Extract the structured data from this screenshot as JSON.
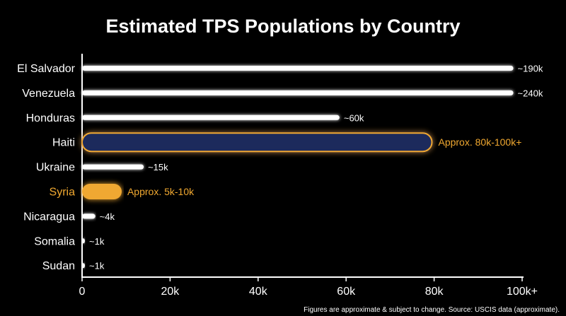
{
  "chart_data": {
    "type": "bar",
    "orientation": "horizontal",
    "title": "Estimated TPS Populations by Country",
    "categories": [
      "El Salvador",
      "Venezuela",
      "Honduras",
      "Haiti",
      "Ukraine",
      "Syria",
      "Nicaragua",
      "Somalia",
      "Sudan"
    ],
    "values": [
      98,
      98,
      58.5,
      79.5,
      14,
      9,
      3,
      0.3,
      0.3
    ],
    "value_labels": [
      "~190k",
      "~240k",
      "~60k",
      "Approx. 80k-100k+",
      "~15k",
      "Approx. 5k-10k",
      "~4k",
      "~1k",
      "~1k"
    ],
    "highlight": [
      "white",
      "white",
      "white",
      "navy",
      "white",
      "orange",
      "white",
      "white",
      "white"
    ],
    "xlim": [
      0,
      100
    ],
    "x_ticks": [
      0,
      20,
      40,
      60,
      80,
      100
    ],
    "x_tick_labels": [
      "0",
      "20k",
      "40k",
      "60k",
      "80k",
      "100k+"
    ],
    "grid": false,
    "xlabel": "",
    "ylabel": "",
    "colors": {
      "background": "#000000",
      "bar": "#ffffff",
      "highlight_fill": "#1a2a5c",
      "highlight_stroke": "#f0a830",
      "accent": "#f0a830"
    }
  },
  "footnote": "Figures are approximate & subject to change. Source: USCIS data (approximate)."
}
